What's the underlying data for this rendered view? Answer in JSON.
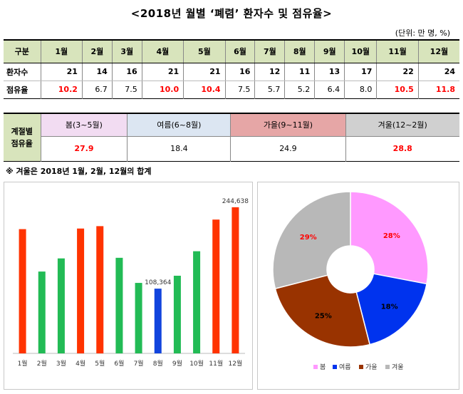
{
  "title": "<2018년 월별 ‘폐렴’ 환자수 및 점유율>",
  "unit": "(단위: 만 명, %)",
  "monthly_table": {
    "header_label": "구분",
    "months": [
      "1월",
      "2월",
      "3월",
      "4월",
      "5월",
      "6월",
      "7월",
      "8월",
      "9월",
      "10월",
      "11월",
      "12월"
    ],
    "patients_label": "환자수",
    "patients": [
      "21",
      "14",
      "16",
      "21",
      "21",
      "16",
      "12",
      "11",
      "13",
      "17",
      "22",
      "24"
    ],
    "share_label": "점유율",
    "share": [
      "10.2",
      "6.7",
      "7.5",
      "10.0",
      "10.4",
      "7.5",
      "5.7",
      "5.2",
      "6.4",
      "8.0",
      "10.5",
      "11.8"
    ]
  },
  "seasonal_table": {
    "header_line1": "계절별",
    "header_line2": "점유율",
    "seasons": [
      "봄(3~5월)",
      "여름(6~8월)",
      "가을(9~11월)",
      "겨울(12~2월)"
    ],
    "values": [
      "27.9",
      "18.4",
      "24.9",
      "28.8"
    ]
  },
  "note": "※ 겨울은 2018년 1월, 2월, 12월의 합계",
  "colors": {
    "red": "#ff3300",
    "green": "#22bb55",
    "blue": "#1144dd"
  },
  "chart_data": [
    {
      "type": "bar",
      "categories": [
        "1월",
        "2월",
        "3월",
        "4월",
        "5월",
        "6월",
        "7월",
        "8월",
        "9월",
        "10월",
        "11월",
        "12월"
      ],
      "values": [
        208000,
        137000,
        159000,
        209000,
        213000,
        160000,
        118000,
        108364,
        130000,
        171000,
        224000,
        244638
      ],
      "bar_colors": [
        "#ff3300",
        "#22bb55",
        "#22bb55",
        "#ff3300",
        "#ff3300",
        "#22bb55",
        "#22bb55",
        "#1144dd",
        "#22bb55",
        "#22bb55",
        "#ff3300",
        "#ff3300"
      ],
      "data_labels": {
        "7": "108,364",
        "11": "244,638"
      },
      "ylim": [
        0,
        260000
      ]
    },
    {
      "type": "pie",
      "labels": [
        "봄",
        "여름",
        "가을",
        "겨울"
      ],
      "values": [
        28,
        18,
        25,
        29
      ],
      "slice_labels": [
        "28%",
        "18%",
        "25%",
        "29%"
      ],
      "colors": [
        "#ff99ff",
        "#0033ee",
        "#993300",
        "#b8b8b8"
      ],
      "label_colors": [
        "#ff0000",
        "#000000",
        "#000000",
        "#ff0000"
      ],
      "legend_position": "bottom"
    }
  ]
}
